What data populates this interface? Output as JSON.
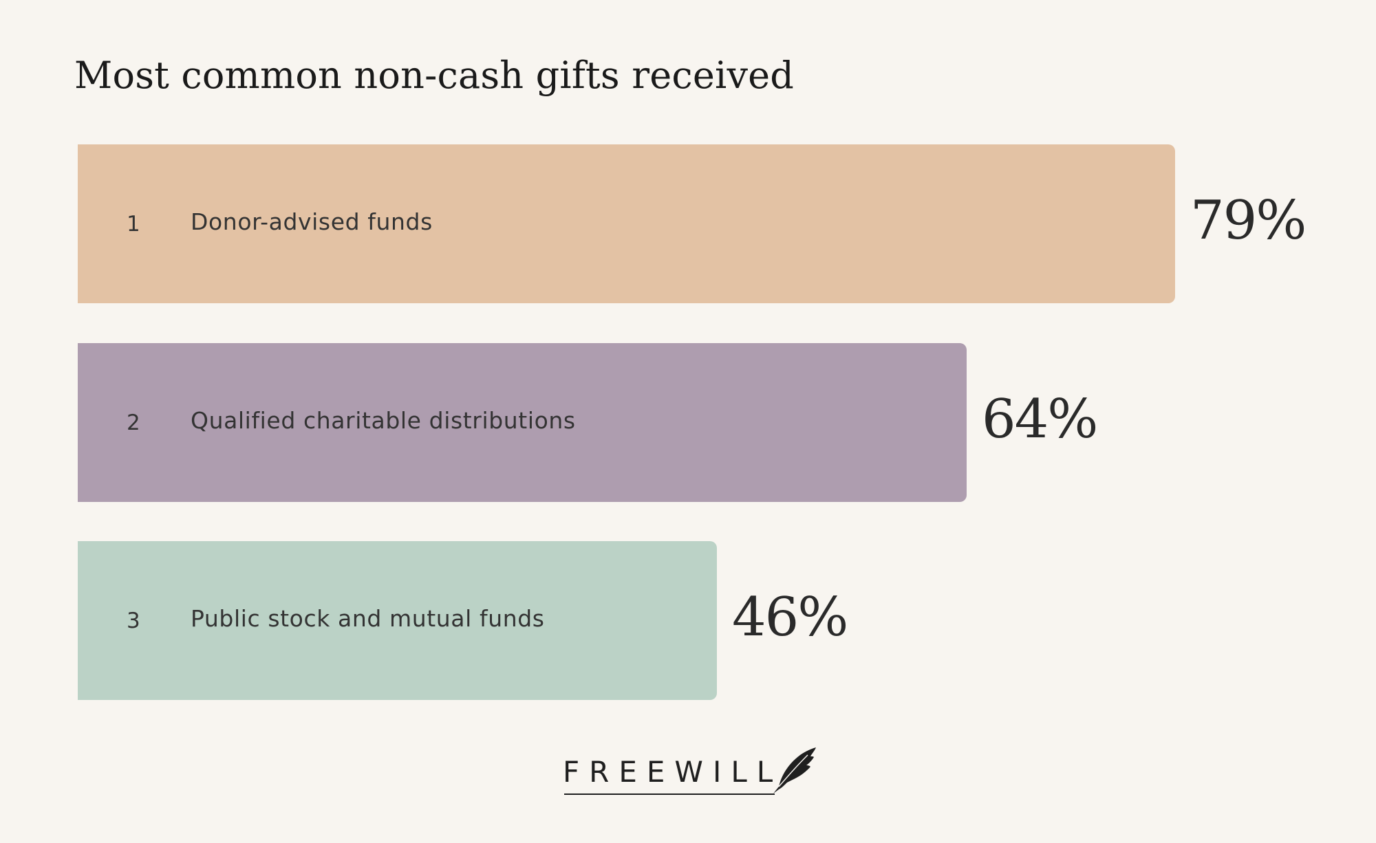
{
  "title": "Most common non-cash gifts received",
  "chart_data": {
    "type": "bar",
    "orientation": "horizontal",
    "title": "Most common non-cash gifts received",
    "categories": [
      "Donor-advised funds",
      "Qualified charitable distributions",
      "Public stock and mutual funds"
    ],
    "ranks": [
      "1",
      "2",
      "3"
    ],
    "values": [
      79,
      64,
      46
    ],
    "value_labels": [
      "79%",
      "64%",
      "46%"
    ],
    "colors": [
      "#e3c2a4",
      "#ae9daf",
      "#bbd2c6"
    ],
    "xlim": [
      0,
      100
    ],
    "grid": false,
    "legend": "none"
  },
  "logo": {
    "text": "FREEWILL",
    "icon": "feather-icon"
  },
  "colors": {
    "background": "#f8f5f0",
    "text": "#2b2b2b"
  }
}
